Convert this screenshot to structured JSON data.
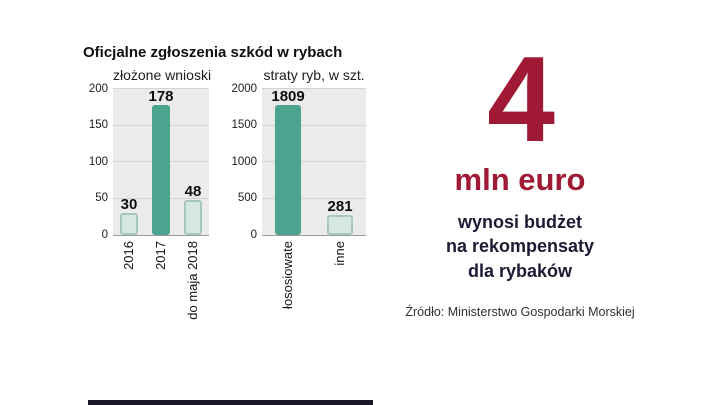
{
  "title": "Oficjalne zgłoszenia szkód w rybach",
  "budget": {
    "amount": "4",
    "unit": "mln euro",
    "caption_line1": "wynosi budżet",
    "caption_line2": "na rekompensaty",
    "caption_line3": "dla rybaków"
  },
  "source": "Źródło: Ministerstwo Gospodarki Morskiej",
  "colors": {
    "bar_solid": "#4ba48d",
    "bar_light_fill": "#d6e8df",
    "bar_light_border": "#a6c8ba",
    "accent_red": "#a11a35",
    "plot_background": "#ebebeb",
    "text_dark": "#111111"
  },
  "chart_data": [
    {
      "type": "bar",
      "title": "złożone wnioski",
      "categories": [
        "2016",
        "2017",
        "do maja 2018"
      ],
      "values": [
        30,
        178,
        48
      ],
      "bar_styles": [
        "light",
        "solid",
        "light"
      ],
      "ylim": [
        0,
        200
      ],
      "yticks": [
        0,
        50,
        100,
        150,
        200
      ],
      "grid": true,
      "legend": "none",
      "xlabel": "",
      "ylabel": ""
    },
    {
      "type": "bar",
      "title": "straty ryb, w szt.",
      "categories": [
        "łososiowate",
        "inne"
      ],
      "values": [
        1809,
        281
      ],
      "bar_styles": [
        "solid",
        "light"
      ],
      "ylim": [
        0,
        2000
      ],
      "yticks": [
        0,
        500,
        1000,
        1500,
        2000
      ],
      "grid": true,
      "legend": "none",
      "xlabel": "",
      "ylabel": ""
    }
  ]
}
